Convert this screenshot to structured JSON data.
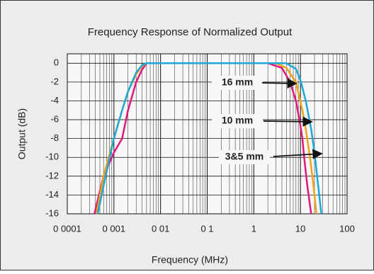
{
  "chart_data": {
    "type": "line",
    "title": "Frequency Response of Normalized Output",
    "x_label": "Frequency (MHz)",
    "y_label": "Output (dB)",
    "log_x": true,
    "grid": true,
    "xlim": [
      0.0001,
      100
    ],
    "ylim": [
      -16,
      1
    ],
    "xticks": [
      {
        "value": 0.0001,
        "label": "0 0001"
      },
      {
        "value": 0.001,
        "label": "0 001"
      },
      {
        "value": 0.01,
        "label": "0 01"
      },
      {
        "value": 0.1,
        "label": "0 1"
      },
      1,
      10,
      100
    ],
    "yticks": [
      0,
      -2,
      -4,
      -6,
      -8,
      -10,
      -12,
      -14,
      -16
    ],
    "series": [
      {
        "name": "16 mm",
        "color": "#e0177f",
        "x": [
          0.00038,
          0.0006,
          0.001,
          0.0015,
          0.002,
          0.003,
          0.004,
          0.005,
          0.1,
          1,
          2,
          4,
          6,
          8,
          9.5,
          11,
          12,
          14,
          17
        ],
        "values": [
          -16,
          -12,
          -9.5,
          -8,
          -5,
          -2,
          -0.7,
          0,
          0,
          0,
          0,
          -0.5,
          -2,
          -4,
          -6,
          -8,
          -10,
          -13,
          -16
        ]
      },
      {
        "name": "10 mm",
        "color": "#f0a21c",
        "x": [
          0.00042,
          0.0006,
          0.001,
          0.0015,
          0.002,
          0.003,
          0.004,
          0.005,
          0.1,
          1,
          3,
          5,
          8,
          11,
          13,
          16,
          19,
          22
        ],
        "values": [
          -16,
          -12,
          -8,
          -5,
          -3,
          -1.2,
          -0.3,
          0,
          0,
          0,
          0,
          -0.5,
          -2,
          -5,
          -7,
          -10,
          -13,
          -16
        ]
      },
      {
        "name": "3&5 mm",
        "color": "#1ba8d8",
        "x": [
          0.00045,
          0.0006,
          0.001,
          0.0015,
          0.002,
          0.003,
          0.004,
          0.005,
          0.1,
          1,
          5,
          8,
          10,
          13,
          17,
          20,
          24,
          28
        ],
        "values": [
          -16,
          -13,
          -8,
          -5,
          -3,
          -1,
          -0.2,
          0,
          0,
          0,
          0,
          -0.6,
          -1.8,
          -4,
          -7,
          -9.5,
          -13,
          -16
        ]
      }
    ]
  }
}
